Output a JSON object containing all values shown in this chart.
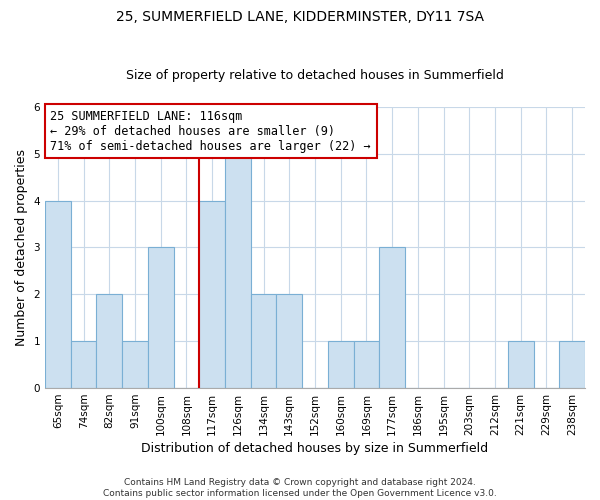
{
  "title": "25, SUMMERFIELD LANE, KIDDERMINSTER, DY11 7SA",
  "subtitle": "Size of property relative to detached houses in Summerfield",
  "xlabel": "Distribution of detached houses by size in Summerfield",
  "ylabel": "Number of detached properties",
  "bin_labels": [
    "65sqm",
    "74sqm",
    "82sqm",
    "91sqm",
    "100sqm",
    "108sqm",
    "117sqm",
    "126sqm",
    "134sqm",
    "143sqm",
    "152sqm",
    "160sqm",
    "169sqm",
    "177sqm",
    "186sqm",
    "195sqm",
    "203sqm",
    "212sqm",
    "221sqm",
    "229sqm",
    "238sqm"
  ],
  "bar_heights": [
    4,
    1,
    2,
    1,
    3,
    0,
    4,
    5,
    2,
    2,
    0,
    1,
    1,
    3,
    0,
    0,
    0,
    0,
    1,
    0,
    1
  ],
  "bar_color": "#cce0f0",
  "bar_edge_color": "#7aafd4",
  "highlight_line_index": 6,
  "highlight_color": "#cc0000",
  "ylim": [
    0,
    6
  ],
  "yticks": [
    0,
    1,
    2,
    3,
    4,
    5,
    6
  ],
  "annotation_line1": "25 SUMMERFIELD LANE: 116sqm",
  "annotation_line2": "← 29% of detached houses are smaller (9)",
  "annotation_line3": "71% of semi-detached houses are larger (22) →",
  "annotation_box_color": "#ffffff",
  "annotation_box_edge": "#cc0000",
  "footnote": "Contains HM Land Registry data © Crown copyright and database right 2024.\nContains public sector information licensed under the Open Government Licence v3.0.",
  "background_color": "#ffffff",
  "grid_color": "#c8d8e8",
  "title_fontsize": 10,
  "subtitle_fontsize": 9,
  "ylabel_fontsize": 9,
  "xlabel_fontsize": 9,
  "annotation_fontsize": 8.5,
  "tick_fontsize": 7.5,
  "footnote_fontsize": 6.5
}
